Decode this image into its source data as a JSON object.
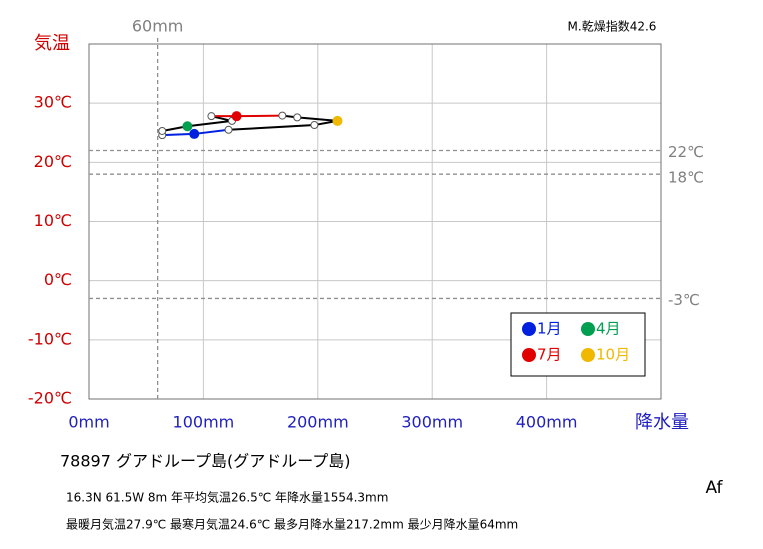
{
  "chart_data": {
    "type": "line",
    "dryness_index": "M.乾燥指数42.6",
    "x_label": "降水量",
    "y_label": "気温",
    "xlim": [
      0,
      500
    ],
    "ylim": [
      -20,
      40
    ],
    "xticks": [
      {
        "value": 0,
        "label": "0mm"
      },
      {
        "value": 100,
        "label": "100mm"
      },
      {
        "value": 200,
        "label": "200mm"
      },
      {
        "value": 300,
        "label": "300mm"
      },
      {
        "value": 400,
        "label": "400mm"
      }
    ],
    "yticks": [
      {
        "value": -20,
        "label": "-20℃"
      },
      {
        "value": -10,
        "label": "-10℃"
      },
      {
        "value": 0,
        "label": "0℃"
      },
      {
        "value": 10,
        "label": "10℃"
      },
      {
        "value": 20,
        "label": "20℃"
      },
      {
        "value": 30,
        "label": "30℃"
      }
    ],
    "grid": true,
    "h_ref_lines": [
      {
        "value": 22,
        "label": "22℃"
      },
      {
        "value": 18,
        "label": "18℃"
      },
      {
        "value": -3,
        "label": "-3℃"
      }
    ],
    "v_ref_lines": [
      {
        "value": 60,
        "label": "60mm"
      }
    ],
    "series": [
      {
        "x": [
          92,
          64,
          64,
          86,
          125,
          107,
          129,
          169,
          182,
          217.2,
          197,
          122
        ],
        "values": [
          24.8,
          24.6,
          25.3,
          26.1,
          27.0,
          27.8,
          27.8,
          27.9,
          27.6,
          27.0,
          26.3,
          25.5
        ],
        "point_colors": [
          "#0020e0",
          "#ffffff",
          "#ffffff",
          "#00a050",
          "#ffffff",
          "#ffffff",
          "#e00000",
          "#ffffff",
          "#ffffff",
          "#f0b800",
          "#ffffff",
          "#ffffff"
        ],
        "segment_colors": [
          "#0020e0",
          "#000000",
          "#000000",
          "#000000",
          "#000000",
          "#e00000",
          "#e00000",
          "#000000",
          "#000000",
          "#000000",
          "#000000",
          "#0020e0"
        ]
      }
    ],
    "legend": [
      {
        "label": "1月",
        "color": "#0020e0"
      },
      {
        "label": "4月",
        "color": "#00a050"
      },
      {
        "label": "7月",
        "color": "#e00000"
      },
      {
        "label": "10月",
        "color": "#f0b800"
      }
    ],
    "station": "78897  グアドループ島(グアドループ島)",
    "info_line1": "16.3N  61.5W  8m  年平均気温26.5℃ 年降水量1554.3mm",
    "info_line2": "最暖月気温27.9℃ 最寒月気温24.6℃ 最多月降水量217.2mm 最少月降水量64mm",
    "climate": "Af"
  }
}
